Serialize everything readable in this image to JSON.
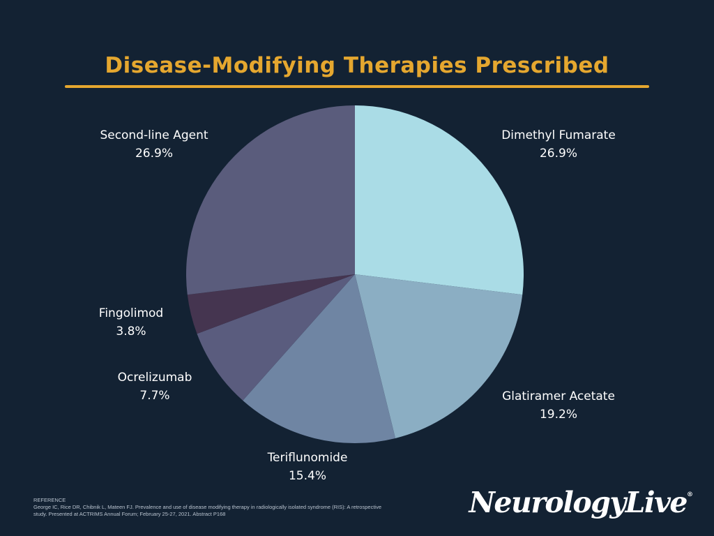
{
  "chart_data": {
    "type": "pie",
    "title": "Disease-Modifying Therapies Prescribed",
    "slices": [
      {
        "label": "Dimethyl Fumarate",
        "value_label": "26.9%",
        "value": 26.9,
        "color": "#AADCE6"
      },
      {
        "label": "Glatiramer Acetate",
        "value_label": "19.2%",
        "value": 19.2,
        "color": "#8BAEC3"
      },
      {
        "label": "Teriflunomide",
        "value_label": "15.4%",
        "value": 15.4,
        "color": "#6F85A3"
      },
      {
        "label": "Ocrelizumab",
        "value_label": "7.7%",
        "value": 7.7,
        "color": "#5A5C7E"
      },
      {
        "label": "Fingolimod",
        "value_label": "3.8%",
        "value": 3.8,
        "color": "#453550"
      },
      {
        "label": "Second-line Agent",
        "value_label": "26.9%",
        "value": 26.9,
        "color": "#5A5C7C"
      }
    ]
  },
  "colors": {
    "background": "#132233",
    "accent": "#E5A72F"
  },
  "reference": {
    "heading": "REFERENCE",
    "text": "George IC, Rice DR, Chibnik L, Mateen FJ. Prevalence and use of disease modifying therapy in radiologically isolated syndrome (RIS): A retrospective study. Presented at ACTRIMS Annual Forum; February 25-27, 2021. Abstract P168"
  },
  "brand": {
    "logo_text": "NeurologyLive",
    "registered_mark": "®"
  }
}
